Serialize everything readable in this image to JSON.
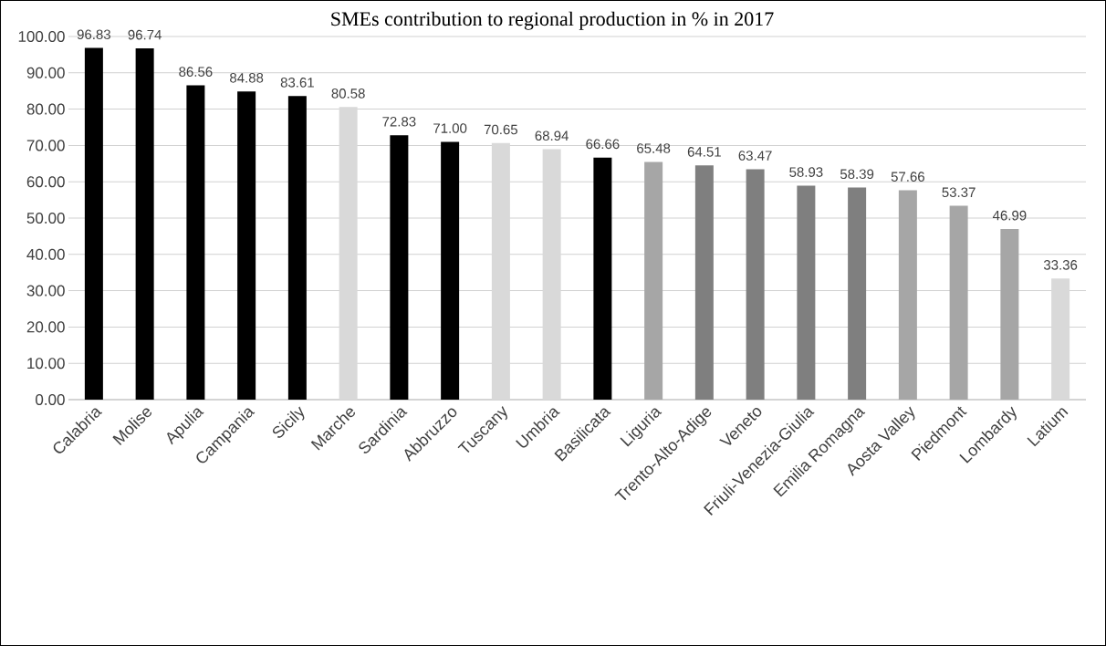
{
  "chart_data": {
    "type": "bar",
    "title": "SMEs contribution to regional production in % in  2017",
    "categories": [
      "Calabria",
      "Molise",
      "Apulia",
      "Campania",
      "Sicily",
      "Marche",
      "Sardinia",
      "Abbruzzo",
      "Tuscany",
      "Umbria",
      "Basilicata",
      "Liguria",
      "Trento-Alto-Adige",
      "Veneto",
      "Friuli-Venezia-Giulia",
      "Emilia Romagna",
      "Aosta Valley",
      "Piedmont",
      "Lombardy",
      "Latium"
    ],
    "values": [
      96.83,
      96.74,
      86.56,
      84.88,
      83.61,
      80.58,
      72.83,
      71.0,
      70.65,
      68.94,
      66.66,
      65.48,
      64.51,
      63.47,
      58.93,
      58.39,
      57.66,
      53.37,
      46.99,
      33.36
    ],
    "value_labels": [
      "96.83",
      "96.74",
      "86.56",
      "84.88",
      "83.61",
      "80.58",
      "72.83",
      "71.00",
      "70.65",
      "68.94",
      "66.66",
      "65.48",
      "64.51",
      "63.47",
      "58.93",
      "58.39",
      "57.66",
      "53.37",
      "46.99",
      "33.36"
    ],
    "colors": [
      "#000000",
      "#000000",
      "#000000",
      "#000000",
      "#000000",
      "#d9d9d9",
      "#000000",
      "#000000",
      "#d9d9d9",
      "#d9d9d9",
      "#000000",
      "#a6a6a6",
      "#7f7f7f",
      "#7f7f7f",
      "#7f7f7f",
      "#7f7f7f",
      "#a6a6a6",
      "#a6a6a6",
      "#a6a6a6",
      "#d9d9d9"
    ],
    "ylim": [
      0,
      100
    ],
    "yticks": [
      {
        "value": 0,
        "label": "0.00"
      },
      {
        "value": 10,
        "label": "10.00"
      },
      {
        "value": 20,
        "label": "20.00"
      },
      {
        "value": 30,
        "label": "30.00"
      },
      {
        "value": 40,
        "label": "40.00"
      },
      {
        "value": 50,
        "label": "50.00"
      },
      {
        "value": 60,
        "label": "60.00"
      },
      {
        "value": 70,
        "label": "70.00"
      },
      {
        "value": 80,
        "label": "80.00"
      },
      {
        "value": 90,
        "label": "90.00"
      },
      {
        "value": 100,
        "label": "100.00"
      }
    ],
    "grid": "y"
  }
}
